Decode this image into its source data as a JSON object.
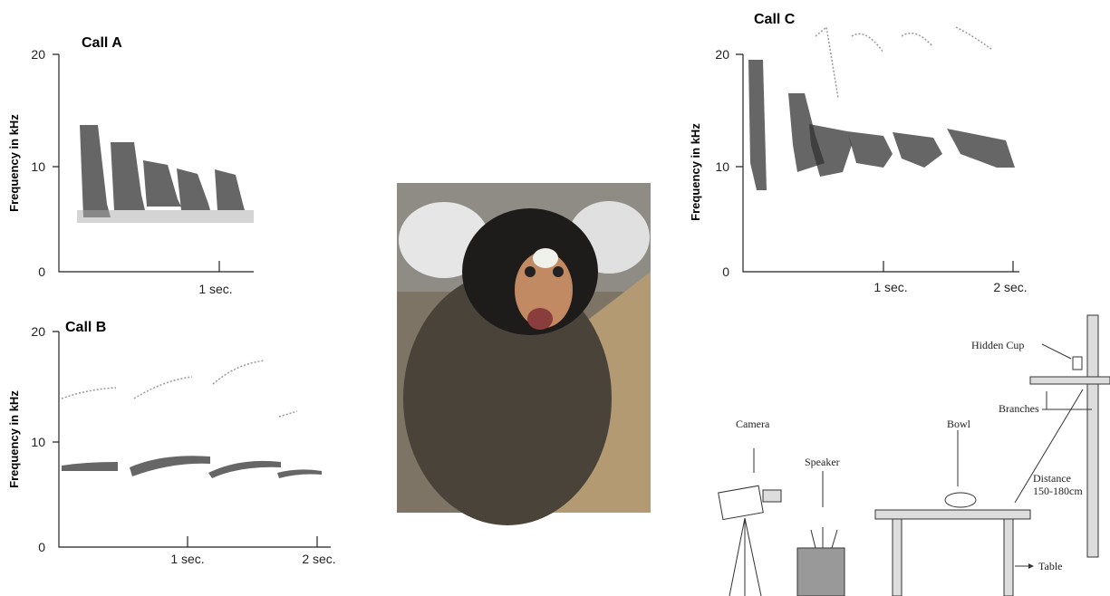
{
  "panels": [
    {
      "title": "Call A",
      "y_label": "Frequency in kHz",
      "y_ticks": [
        "20",
        "10",
        "0"
      ],
      "x_ticks": [
        "1 sec."
      ]
    },
    {
      "title": "Call B",
      "y_label": "Frequency in kHz",
      "y_ticks": [
        "20",
        "10",
        "0"
      ],
      "x_ticks": [
        "1 sec.",
        "2 sec."
      ]
    },
    {
      "title": "Call C",
      "y_label": "Frequency in kHz",
      "y_ticks": [
        "20",
        "10",
        "0"
      ],
      "x_ticks": [
        "1 sec.",
        "2 sec."
      ]
    }
  ],
  "diagram": {
    "hidden_cup": "Hidden Cup",
    "branches": "Branches",
    "camera": "Camera",
    "speaker": "Speaker",
    "bowl": "Bowl",
    "distance": [
      "Distance",
      "150-180cm"
    ],
    "table": "Table"
  }
}
